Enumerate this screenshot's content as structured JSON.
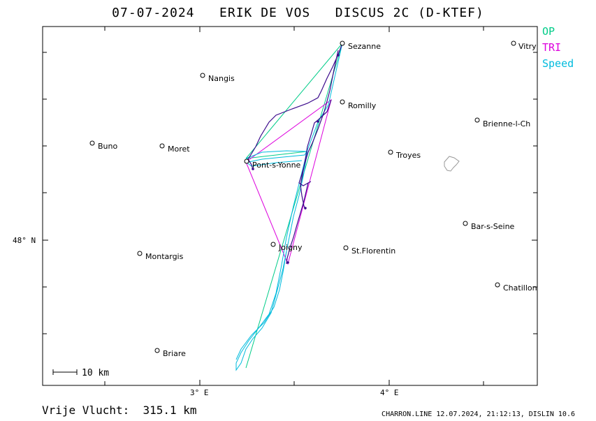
{
  "header": {
    "date": "07-07-2024",
    "pilot": "ERIK DE VOS",
    "glider": "DISCUS 2C (D-KTEF)"
  },
  "legend": [
    {
      "label": "OP",
      "color": "#00cc88"
    },
    {
      "label": "TRI",
      "color": "#dd00dd"
    },
    {
      "label": "Speed",
      "color": "#00bbdd"
    }
  ],
  "axes": {
    "lat_label": "48° N",
    "lon_labels": [
      "3° E",
      "4° E"
    ]
  },
  "cities": [
    {
      "name": "Sezanne"
    },
    {
      "name": "Vitry"
    },
    {
      "name": "Nangis"
    },
    {
      "name": "Romilly"
    },
    {
      "name": "Brienne-l-Ch"
    },
    {
      "name": "Buno"
    },
    {
      "name": "Moret"
    },
    {
      "name": "Troyes"
    },
    {
      "name": "Pont-s-Yonne"
    },
    {
      "name": "Bar-s-Seine"
    },
    {
      "name": "Montargis"
    },
    {
      "name": "Joigny"
    },
    {
      "name": "St.Florentin"
    },
    {
      "name": "Chatillon"
    },
    {
      "name": "Briare"
    }
  ],
  "scale": {
    "label": "10 km"
  },
  "footer": {
    "flight_type": "Vrije Vlucht:",
    "distance": "315.1 km",
    "software": "CHARRON.LINE 12.07.2024, 21:12:13, DISLIN 10.6"
  },
  "colors": {
    "track": "#3b0a8c",
    "speed_track": "#00bbdd",
    "op_line": "#00cc88",
    "tri_line": "#dd00dd",
    "lake": "#999999"
  }
}
